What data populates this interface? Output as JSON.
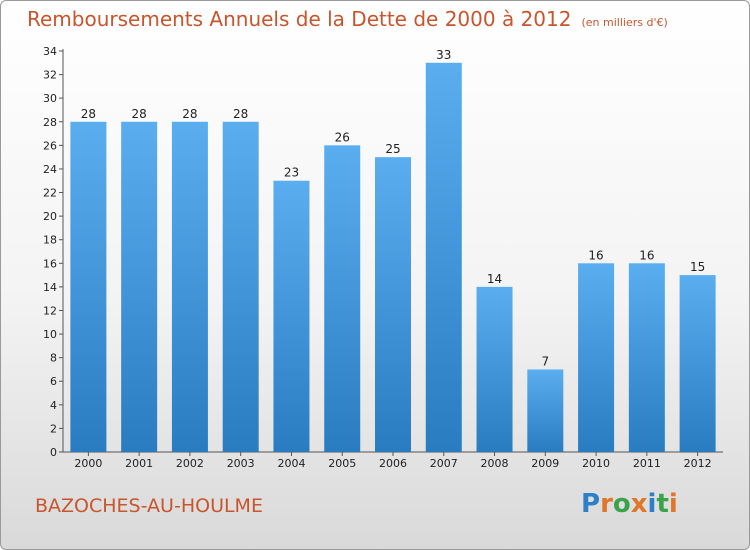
{
  "title": "Remboursements Annuels de la Dette de 2000 à 2012",
  "unit": "(en milliers d'€)",
  "commune": "BAZOCHES-AU-HOULME",
  "logo": {
    "text": "Proxiti",
    "letters": [
      {
        "ch": "P",
        "color": "#2f7fc8"
      },
      {
        "ch": "r",
        "color": "#e0762a"
      },
      {
        "ch": "o",
        "color": "#3aa34a"
      },
      {
        "ch": "x",
        "color": "#e0762a"
      },
      {
        "ch": "i",
        "color": "#2f7fc8"
      },
      {
        "ch": "t",
        "color": "#3aa34a"
      },
      {
        "ch": "i",
        "color": "#e0762a"
      }
    ]
  },
  "colors": {
    "accent": "#c8552c",
    "bar_top": "#5aaef0",
    "bar_bottom": "#2a7cc0"
  },
  "chart_data": {
    "type": "bar",
    "categories": [
      "2000",
      "2001",
      "2002",
      "2003",
      "2004",
      "2005",
      "2006",
      "2007",
      "2008",
      "2009",
      "2010",
      "2011",
      "2012"
    ],
    "values": [
      28,
      28,
      28,
      28,
      23,
      26,
      25,
      33,
      14,
      7,
      16,
      16,
      15
    ],
    "ylim": [
      0,
      34
    ],
    "yticks": [
      0,
      2,
      4,
      6,
      8,
      10,
      12,
      14,
      16,
      18,
      20,
      22,
      24,
      26,
      28,
      30,
      32,
      34
    ],
    "grid": false,
    "data_labels": true
  }
}
